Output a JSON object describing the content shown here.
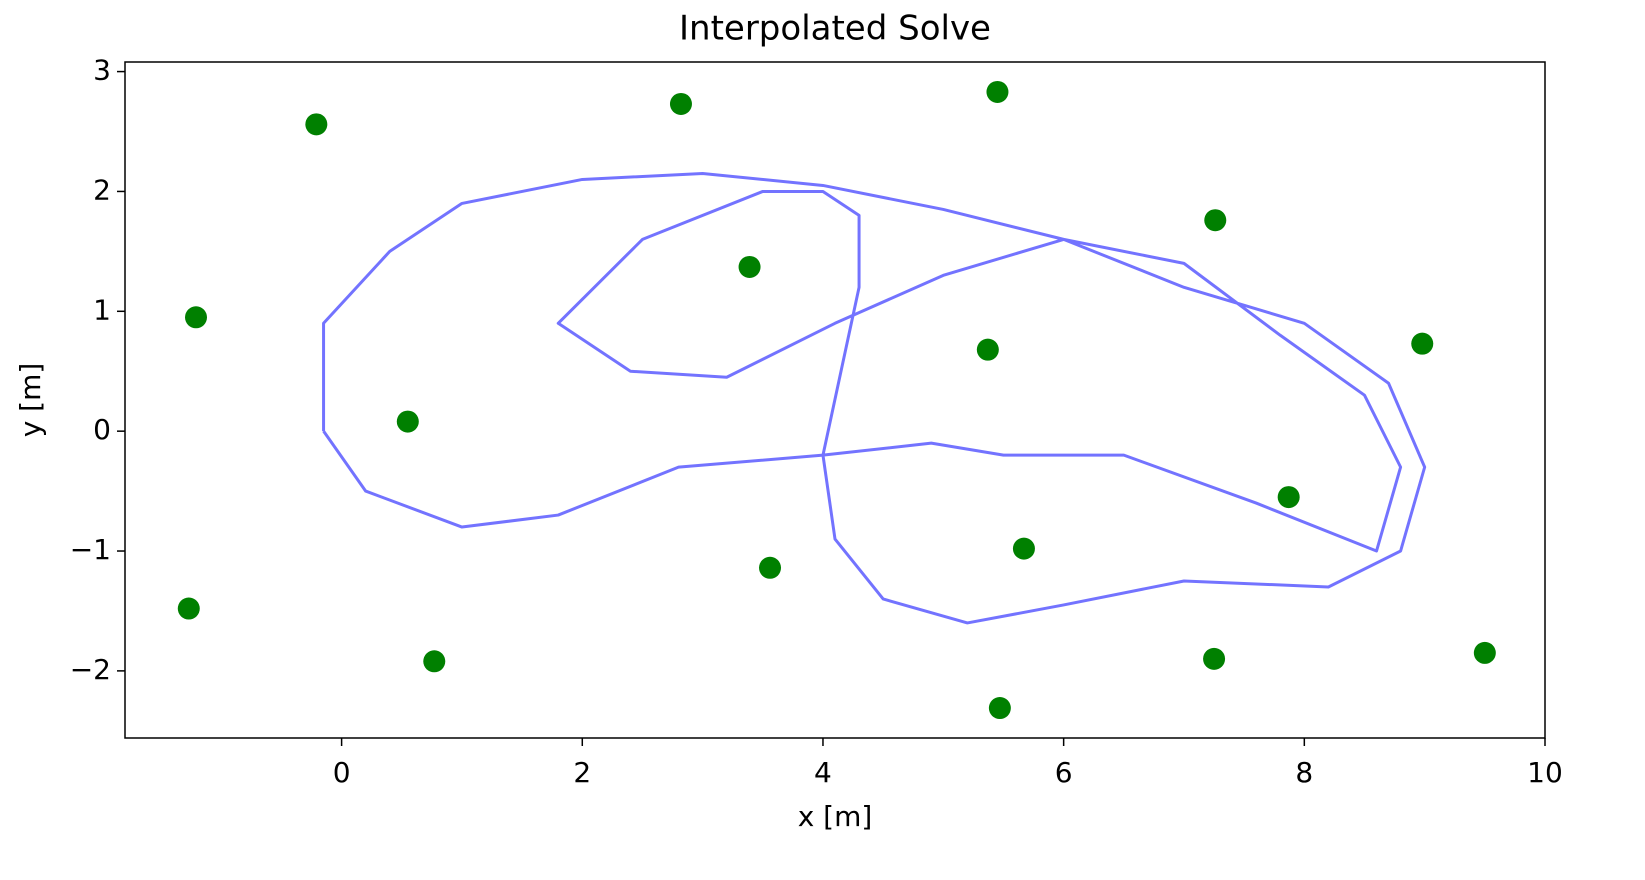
{
  "chart_data": {
    "type": "scatter",
    "title": "Interpolated Solve",
    "x_label": "x [m]",
    "y_label": "y [m]",
    "xlim": [
      -1.8,
      10.0
    ],
    "ylim": [
      -2.56,
      3.08
    ],
    "xticks": [
      0,
      2,
      4,
      6,
      8,
      10
    ],
    "yticks": [
      {
        "value": -2,
        "label": "−2"
      },
      {
        "value": -1,
        "label": "−1"
      },
      0,
      1,
      2,
      3
    ],
    "series": [
      {
        "style": "marker",
        "color": "#008000",
        "x": [
          -0.21,
          2.82,
          5.45,
          7.26,
          3.39,
          -1.21,
          5.37,
          8.98,
          0.55,
          7.87,
          5.67,
          3.56,
          -1.27,
          0.77,
          7.25,
          9.5,
          5.47
        ],
        "y": [
          2.56,
          2.73,
          2.83,
          1.76,
          1.37,
          0.95,
          0.68,
          0.73,
          0.08,
          -0.55,
          -0.98,
          -1.14,
          -1.48,
          -1.92,
          -1.9,
          -1.85,
          -2.31
        ]
      },
      {
        "style": "line",
        "color": "#0000ff",
        "x": [
          -0.15,
          -0.15,
          0.4,
          1.0,
          2.0,
          3.0,
          4.0,
          5.0,
          6.0,
          7.0,
          8.0,
          8.7,
          9.0,
          8.8,
          8.2,
          7.0,
          6.0,
          5.2,
          4.5,
          4.1,
          4.0,
          4.15,
          4.3,
          4.3,
          4.0,
          3.5,
          2.5,
          1.8,
          2.4,
          3.2,
          4.1,
          5.0,
          6.0,
          7.0,
          7.8,
          8.5,
          8.8,
          8.6,
          7.6,
          6.5,
          5.5,
          4.9,
          4.0,
          2.8,
          1.8,
          1.0,
          0.2,
          -0.15
        ],
        "y": [
          0.0,
          0.9,
          1.5,
          1.9,
          2.1,
          2.15,
          2.05,
          1.85,
          1.6,
          1.2,
          0.9,
          0.4,
          -0.3,
          -1.0,
          -1.3,
          -1.25,
          -1.45,
          -1.6,
          -1.4,
          -0.9,
          -0.2,
          0.5,
          1.2,
          1.8,
          2.0,
          2.0,
          1.6,
          0.9,
          0.5,
          0.45,
          0.9,
          1.3,
          1.6,
          1.4,
          0.8,
          0.3,
          -0.3,
          -1.0,
          -0.6,
          -0.2,
          -0.2,
          -0.1,
          -0.2,
          -0.3,
          -0.7,
          -0.8,
          -0.5,
          0.0
        ]
      }
    ]
  }
}
